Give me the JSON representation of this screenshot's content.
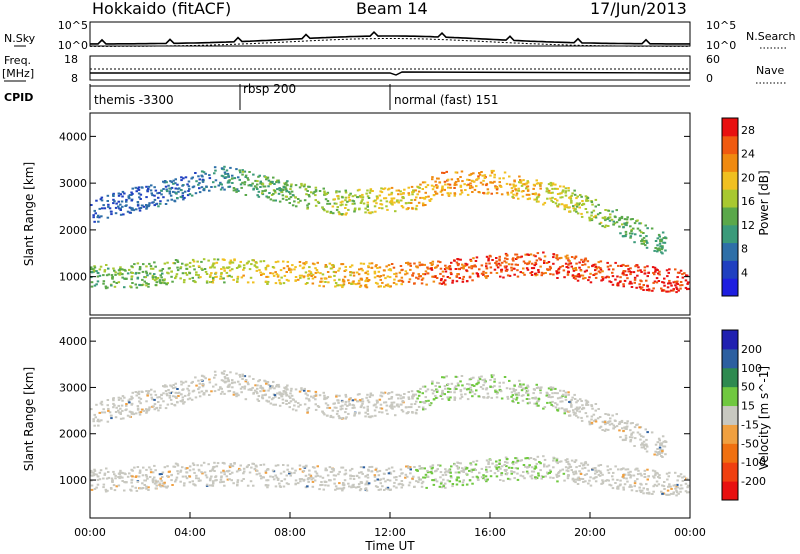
{
  "header": {
    "site": "Hokkaido (fitACF)",
    "beam": "Beam 14",
    "date": "17/Jun/2013"
  },
  "noise_panel": {
    "left_label": "N.Sky",
    "right_label": "N.Search",
    "left_ticks": [
      "10^5",
      "10^0"
    ],
    "right_ticks": [
      "10^5",
      "10^0"
    ]
  },
  "freq_panel": {
    "left_label_1": "Freq.",
    "left_label_2": "[MHz]",
    "right_label": "Nave",
    "left_ticks": [
      "18",
      "8"
    ],
    "right_ticks": [
      "60",
      "0"
    ]
  },
  "cpid_panel": {
    "label": "CPID",
    "segments": [
      {
        "start_hour": 0,
        "text": "themis -3300"
      },
      {
        "start_hour": 6,
        "text": "rbsp 200"
      },
      {
        "start_hour": 12,
        "text": "normal (fast) 151"
      }
    ]
  },
  "colors": {
    "power_scale": [
      "#1f1fe0",
      "#2040c0",
      "#2e6fa8",
      "#3a9a7a",
      "#5aa84a",
      "#a8c830",
      "#f0c020",
      "#f08a10",
      "#f05a10",
      "#e81010"
    ],
    "velocity_scale": [
      "#2020b0",
      "#2c5fa0",
      "#2e8a50",
      "#70c840",
      "#c8c8c0",
      "#f0a040",
      "#f07010",
      "#f04010",
      "#e81010"
    ]
  },
  "chart_data": [
    {
      "type": "heatmap",
      "title": "Power",
      "ylabel": "Slant Range [km]",
      "xlabel": "",
      "colorbar_label": "Power [dB]",
      "colorbar_ticks": [
        "4",
        "8",
        "12",
        "16",
        "20",
        "24",
        "28"
      ],
      "y_ticks": [
        "1000",
        "2000",
        "3000",
        "4000"
      ],
      "x_range_hours": [
        0,
        24
      ],
      "y_range_km": [
        180,
        4500
      ],
      "color_range_db": [
        0,
        30
      ],
      "scatter_bands": [
        {
          "band": "near-range lower",
          "t": [
            0,
            2,
            4,
            6,
            8,
            10,
            12,
            14,
            16,
            18,
            20,
            22,
            24
          ],
          "range_km": [
            1000,
            1050,
            1150,
            1150,
            1100,
            1050,
            1050,
            1100,
            1250,
            1300,
            1150,
            1000,
            900
          ],
          "power_db": [
            14,
            14,
            16,
            18,
            20,
            20,
            22,
            26,
            26,
            26,
            26,
            28,
            28
          ]
        },
        {
          "band": "upper band",
          "t": [
            0,
            2,
            4,
            5,
            6,
            8,
            10,
            13,
            14,
            16,
            17,
            19,
            21,
            23
          ],
          "range_km": [
            2400,
            2700,
            2950,
            3150,
            3050,
            2800,
            2600,
            2700,
            3000,
            3050,
            2950,
            2700,
            2200,
            1700
          ],
          "power_db": [
            6,
            6,
            8,
            8,
            12,
            14,
            16,
            20,
            22,
            22,
            20,
            18,
            14,
            12
          ]
        }
      ]
    },
    {
      "type": "heatmap",
      "title": "Velocity",
      "ylabel": "Slant Range [km]",
      "xlabel": "Time UT",
      "colorbar_label": "Velocity [m s^-1]",
      "colorbar_ticks": [
        "200",
        "100",
        "50",
        "15",
        "-15",
        "-50",
        "-100",
        "-200"
      ],
      "y_ticks": [
        "1000",
        "2000",
        "3000",
        "4000"
      ],
      "x_ticks": [
        "00:00",
        "04:00",
        "08:00",
        "12:00",
        "16:00",
        "20:00",
        "00:00"
      ],
      "x_range_hours": [
        0,
        24
      ],
      "y_range_km": [
        180,
        4500
      ],
      "color_range_ms": [
        -250,
        250
      ]
    }
  ]
}
